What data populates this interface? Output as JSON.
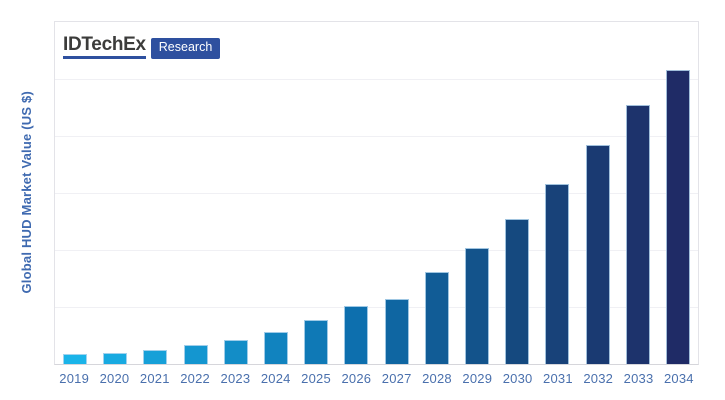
{
  "page": {
    "background": "#ffffff"
  },
  "logo": {
    "brand": "IDTechEx",
    "badge": "Research",
    "brand_color": "#3c3c3b",
    "accent_color": "#2e509f"
  },
  "chart_data": {
    "type": "bar",
    "title": "",
    "xlabel": "",
    "ylabel": "Global HUD Market Value (US $)",
    "categories": [
      "2019",
      "2020",
      "2021",
      "2022",
      "2023",
      "2024",
      "2025",
      "2026",
      "2027",
      "2028",
      "2029",
      "2030",
      "2031",
      "2032",
      "2033",
      "2034"
    ],
    "values": [
      0.18,
      0.2,
      0.25,
      0.33,
      0.43,
      0.57,
      0.77,
      1.02,
      1.14,
      1.61,
      2.04,
      2.55,
      3.15,
      3.84,
      4.55,
      5.16
    ],
    "value_units": "relative units; y-axis has no numeric tick labels, 1.0 = one gridline interval",
    "ylim": [
      0,
      6
    ],
    "grid": "horizontal, light gray, 5 internal lines",
    "legend": "none",
    "bar_colors": [
      "#1AB4E9",
      "#18AAE1",
      "#16A0D8",
      "#1496D0",
      "#138DC7",
      "#1183BF",
      "#0F79B6",
      "#0D6FAE",
      "#0F66A2",
      "#115C96",
      "#13538B",
      "#15497F",
      "#184279",
      "#1A3A72",
      "#1D336C",
      "#1F2B66"
    ],
    "axis_label_color": "#4a70ad",
    "ylabel_color": "#3f6ab0"
  }
}
